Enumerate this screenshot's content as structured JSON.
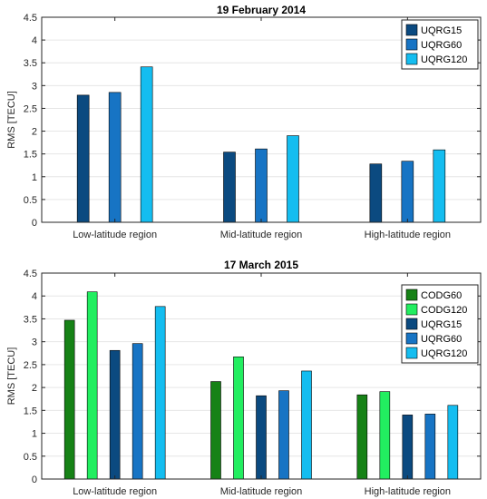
{
  "chart_data": [
    {
      "type": "bar",
      "title": "19 February 2014",
      "xlabel": "",
      "ylabel": "RMS [TECU]",
      "ylim": [
        0,
        4.5
      ],
      "yticks": [
        "0",
        "0.5",
        "1",
        "1.5",
        "2",
        "2.5",
        "3",
        "3.5",
        "4",
        "4.5"
      ],
      "categories": [
        "Low-latitude region",
        "Mid-latitude region",
        "High-latitude region"
      ],
      "grid": true,
      "legend_position": "top-right",
      "series": [
        {
          "name": "UQRG15",
          "color": "#0b4a80",
          "values": [
            2.79,
            1.54,
            1.28
          ]
        },
        {
          "name": "UQRG60",
          "color": "#1774c4",
          "values": [
            2.85,
            1.61,
            1.34
          ]
        },
        {
          "name": "UQRG120",
          "color": "#14bdf0",
          "values": [
            3.41,
            1.9,
            1.59
          ]
        }
      ]
    },
    {
      "type": "bar",
      "title": "17 March 2015",
      "xlabel": "",
      "ylabel": "RMS [TECU]",
      "ylim": [
        0,
        4.5
      ],
      "yticks": [
        "0",
        "0.5",
        "1",
        "1.5",
        "2",
        "2.5",
        "3",
        "3.5",
        "4",
        "4.5"
      ],
      "categories": [
        "Low-latitude region",
        "Mid-latitude region",
        "High-latitude region"
      ],
      "grid": true,
      "legend_position": "top-right",
      "series": [
        {
          "name": "CODG60",
          "color": "#168216",
          "values": [
            3.47,
            2.13,
            1.84
          ]
        },
        {
          "name": "CODG120",
          "color": "#22ee60",
          "values": [
            4.09,
            2.67,
            1.91
          ]
        },
        {
          "name": "UQRG15",
          "color": "#0b4a80",
          "values": [
            2.81,
            1.82,
            1.4
          ]
        },
        {
          "name": "UQRG60",
          "color": "#1774c4",
          "values": [
            2.96,
            1.93,
            1.42
          ]
        },
        {
          "name": "UQRG120",
          "color": "#14bdf0",
          "values": [
            3.77,
            2.36,
            1.61
          ]
        }
      ]
    }
  ]
}
